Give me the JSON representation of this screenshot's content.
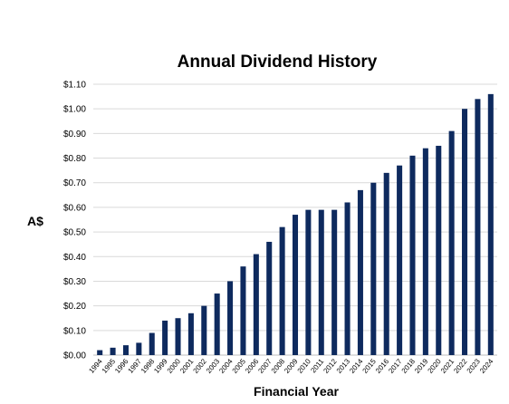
{
  "chart_data": {
    "type": "bar",
    "title": "Annual Dividend History",
    "xlabel": "Financial Year",
    "ylabel": "A$",
    "ylim": [
      0,
      1.1
    ],
    "y_tick_step": 0.1,
    "y_tick_format": "currency",
    "currency_symbol": "$",
    "grid": true,
    "bar_color": "#0e2a5e",
    "categories": [
      "1994",
      "1995",
      "1996",
      "1997",
      "1998",
      "1999",
      "2000",
      "2001",
      "2002",
      "2003",
      "2004",
      "2005",
      "2006",
      "2007",
      "2008",
      "2009",
      "2010",
      "2011",
      "2012",
      "2013",
      "2014",
      "2015",
      "2016",
      "2017",
      "2018",
      "2019",
      "2020",
      "2021",
      "2022",
      "2023",
      "2024"
    ],
    "values": [
      0.02,
      0.03,
      0.04,
      0.05,
      0.09,
      0.14,
      0.15,
      0.17,
      0.2,
      0.25,
      0.3,
      0.36,
      0.41,
      0.46,
      0.52,
      0.57,
      0.59,
      0.59,
      0.59,
      0.62,
      0.67,
      0.7,
      0.74,
      0.77,
      0.81,
      0.84,
      0.85,
      0.91,
      1.0,
      1.04,
      1.06
    ]
  }
}
